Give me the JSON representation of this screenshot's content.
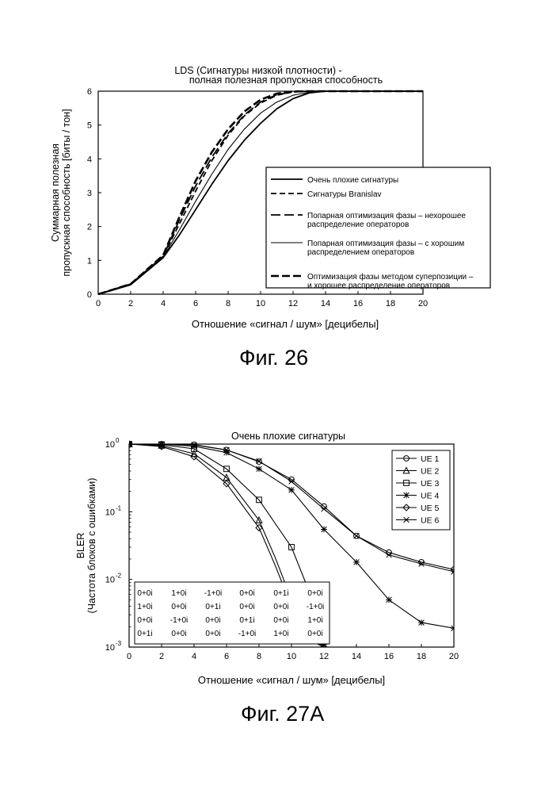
{
  "figures": [
    {
      "caption": "Фиг. 26"
    },
    {
      "caption": "Фиг. 27А"
    }
  ],
  "chart_data": [
    {
      "type": "line",
      "title": "LDS (Сигнатуры низкой плотности) -",
      "subtitle": "полная полезная пропускная способность",
      "xlabel": "Отношение «сигнал / шум» [децибелы]",
      "ylabel_lines": [
        "Суммарная полезная",
        "пропускная способность [биты / тон]"
      ],
      "xlim": [
        0,
        20
      ],
      "ylim": [
        0,
        6
      ],
      "x_ticks": [
        "0",
        "2",
        "4",
        "6",
        "8",
        "10",
        "12",
        "14",
        "16",
        "18",
        "20"
      ],
      "y_ticks": [
        "0",
        "1",
        "2",
        "3",
        "4",
        "5",
        "6"
      ],
      "legend_position": "bottom-right",
      "x": [
        0,
        2,
        4,
        5,
        6,
        7,
        8,
        9,
        10,
        11,
        12,
        13,
        14,
        16,
        18,
        20
      ],
      "series": [
        {
          "legend_lines": [
            "Очень плохие сигнатуры"
          ],
          "style": "solid-thick",
          "values": [
            0,
            0.28,
            1.08,
            1.75,
            2.5,
            3.25,
            3.95,
            4.55,
            5.05,
            5.48,
            5.78,
            5.95,
            6.0,
            6.0,
            6.0,
            6.0
          ]
        },
        {
          "legend_lines": [
            "Сигнатуры Branislav"
          ],
          "style": "dash-short",
          "values": [
            0,
            0.3,
            1.12,
            2.08,
            3.05,
            3.95,
            4.7,
            5.27,
            5.65,
            5.88,
            5.98,
            6.0,
            6.0,
            6.0,
            6.0,
            6.0
          ]
        },
        {
          "legend_lines": [
            "Попарная оптимизация фазы – нехорошее",
            "распределение операторов"
          ],
          "style": "dash-long",
          "values": [
            0,
            0.3,
            1.12,
            2.2,
            3.2,
            4.05,
            4.75,
            5.3,
            5.68,
            5.9,
            5.98,
            6.0,
            6.0,
            6.0,
            6.0,
            6.0
          ]
        },
        {
          "legend_lines": [
            "Попарная оптимизация фазы – с хорошим",
            "распределением операторов"
          ],
          "style": "solid-thin",
          "values": [
            0,
            0.29,
            1.1,
            1.9,
            2.75,
            3.55,
            4.28,
            4.88,
            5.35,
            5.68,
            5.88,
            5.97,
            6.0,
            6.0,
            6.0,
            6.0
          ]
        },
        {
          "legend_lines": [
            "Оптимизация фазы методом суперпозиции –",
            "и хорошее распределение операторов"
          ],
          "style": "dash-thick",
          "values": [
            0,
            0.3,
            1.15,
            2.28,
            3.35,
            4.2,
            4.88,
            5.4,
            5.75,
            5.93,
            5.99,
            6.0,
            6.0,
            6.0,
            6.0,
            6.0
          ]
        }
      ]
    },
    {
      "type": "line",
      "title": "Очень плохие сигнатуры",
      "xlabel": "Отношение «сигнал / шум» [децибелы]",
      "ylabel_lines": [
        "BLER",
        "(Частота блоков с ошибками)"
      ],
      "y_scale": "log",
      "xlim": [
        0,
        20
      ],
      "ylim": [
        0.001,
        1
      ],
      "x_ticks": [
        "0",
        "2",
        "4",
        "6",
        "8",
        "10",
        "12",
        "14",
        "16",
        "18",
        "20"
      ],
      "y_ticks": [
        {
          "base": "10",
          "exp": "0",
          "value": 1
        },
        {
          "base": "10",
          "exp": "-1",
          "value": 0.1
        },
        {
          "base": "10",
          "exp": "-2",
          "value": 0.01
        },
        {
          "base": "10",
          "exp": "-3",
          "value": 0.001
        }
      ],
      "legend_position": "top-right",
      "series": [
        {
          "name": "UE 1",
          "marker": "circle",
          "x": [
            0,
            2,
            4,
            6,
            8,
            10,
            12,
            14,
            16,
            18,
            20
          ],
          "values": [
            1.0,
            1.0,
            0.98,
            0.82,
            0.55,
            0.3,
            0.12,
            0.044,
            0.025,
            0.018,
            0.014
          ]
        },
        {
          "name": "UE 2",
          "marker": "triangle",
          "x": [
            0,
            2,
            4,
            6,
            8,
            9,
            10,
            11,
            12
          ],
          "values": [
            1.0,
            0.95,
            0.72,
            0.32,
            0.075,
            0.021,
            0.005,
            0.0015,
            0.001
          ]
        },
        {
          "name": "UE 3",
          "marker": "square",
          "x": [
            0,
            2,
            4,
            6,
            8,
            10,
            11,
            12
          ],
          "values": [
            1.0,
            0.98,
            0.85,
            0.43,
            0.15,
            0.03,
            0.0075,
            0.0012
          ]
        },
        {
          "name": "UE 4",
          "marker": "star",
          "x": [
            0,
            2,
            4,
            6,
            8,
            10,
            12,
            14,
            16,
            18,
            20
          ],
          "values": [
            1.0,
            1.0,
            0.93,
            0.75,
            0.43,
            0.21,
            0.055,
            0.018,
            0.005,
            0.0023,
            0.0019
          ]
        },
        {
          "name": "UE 5",
          "marker": "diamond",
          "x": [
            0,
            2,
            4,
            6,
            8,
            9,
            10,
            11,
            12
          ],
          "values": [
            1.0,
            0.92,
            0.65,
            0.26,
            0.058,
            0.016,
            0.004,
            0.0013,
            0.001
          ]
        },
        {
          "name": "UE 6",
          "marker": "x",
          "x": [
            0,
            2,
            4,
            6,
            8,
            10,
            12,
            14,
            16,
            18,
            20
          ],
          "values": [
            1.0,
            1.0,
            0.97,
            0.82,
            0.56,
            0.28,
            0.11,
            0.044,
            0.023,
            0.017,
            0.013
          ]
        }
      ],
      "inset_table": [
        [
          "0+0i",
          "1+0i",
          "-1+0i",
          "0+0i",
          "0+1i",
          "0+0i"
        ],
        [
          "1+0i",
          "0+0i",
          "0+1i",
          "0+0i",
          "0+0i",
          "-1+0i"
        ],
        [
          "0+0i",
          "-1+0i",
          "0+0i",
          "0+1i",
          "0+0i",
          "1+0i"
        ],
        [
          "0+1i",
          "0+0i",
          "0+0i",
          "-1+0i",
          "1+0i",
          "0+0i"
        ]
      ]
    }
  ]
}
